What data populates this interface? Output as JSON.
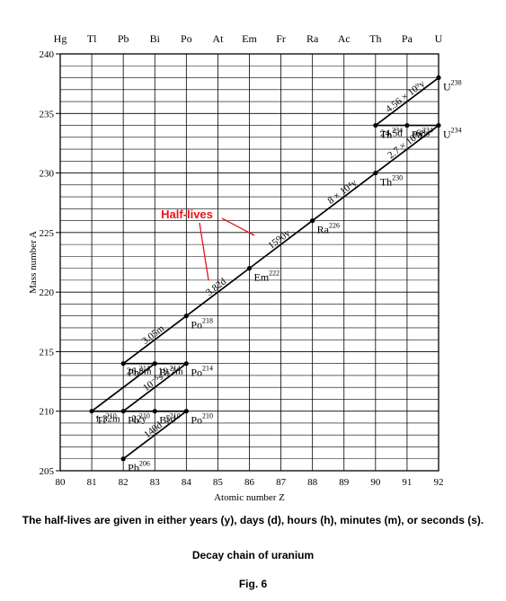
{
  "chart_data": {
    "type": "scatter",
    "xlabel": "Atomic number Z",
    "ylabel": "Mass number A",
    "xlim": [
      80,
      92
    ],
    "ylim": [
      205,
      240
    ],
    "grid": true,
    "top_labels": [
      "Hg",
      "Tl",
      "Pb",
      "Bi",
      "Po",
      "At",
      "Em",
      "Fr",
      "Ra",
      "Ac",
      "Th",
      "Pa",
      "U"
    ],
    "x_ticks": [
      "80",
      "81",
      "82",
      "83",
      "84",
      "85",
      "86",
      "87",
      "88",
      "89",
      "90",
      "91",
      "92"
    ],
    "y_ticks": [
      "205",
      "210",
      "215",
      "220",
      "225",
      "230",
      "235",
      "240"
    ],
    "nuclides": [
      {
        "symbol": "U",
        "mass": "238",
        "z": 92,
        "a": 238
      },
      {
        "symbol": "Th",
        "mass": "234",
        "z": 90,
        "a": 234
      },
      {
        "symbol": "Pa",
        "mass": "234",
        "z": 91,
        "a": 234
      },
      {
        "symbol": "U",
        "mass": "234",
        "z": 92,
        "a": 234
      },
      {
        "symbol": "Th",
        "mass": "230",
        "z": 90,
        "a": 230
      },
      {
        "symbol": "Ra",
        "mass": "226",
        "z": 88,
        "a": 226
      },
      {
        "symbol": "Em",
        "mass": "222",
        "z": 86,
        "a": 222
      },
      {
        "symbol": "Po",
        "mass": "218",
        "z": 84,
        "a": 218
      },
      {
        "symbol": "Pb",
        "mass": "214",
        "z": 82,
        "a": 214
      },
      {
        "symbol": "Bi",
        "mass": "214",
        "z": 83,
        "a": 214
      },
      {
        "symbol": "Po",
        "mass": "214",
        "z": 84,
        "a": 214
      },
      {
        "symbol": "Tl",
        "mass": "210",
        "z": 81,
        "a": 210
      },
      {
        "symbol": "Pb",
        "mass": "210",
        "z": 82,
        "a": 210
      },
      {
        "symbol": "Bi",
        "mass": "210",
        "z": 83,
        "a": 210
      },
      {
        "symbol": "Po",
        "mass": "210",
        "z": 84,
        "a": 210
      },
      {
        "symbol": "Pb",
        "mass": "206",
        "z": 82,
        "a": 206
      }
    ],
    "decays": [
      {
        "from": [
          92,
          238
        ],
        "to": [
          90,
          234
        ],
        "half_life": "4.56 × 10⁹y"
      },
      {
        "from": [
          90,
          234
        ],
        "to": [
          91,
          234
        ],
        "half_life": "24.5d"
      },
      {
        "from": [
          91,
          234
        ],
        "to": [
          92,
          234
        ],
        "half_life": "68s"
      },
      {
        "from": [
          92,
          234
        ],
        "to": [
          90,
          230
        ],
        "half_life": "2.7 × 10⁵y"
      },
      {
        "from": [
          90,
          230
        ],
        "to": [
          88,
          226
        ],
        "half_life": "8 × 10⁴y"
      },
      {
        "from": [
          88,
          226
        ],
        "to": [
          86,
          222
        ],
        "half_life": "1590y"
      },
      {
        "from": [
          86,
          222
        ],
        "to": [
          84,
          218
        ],
        "half_life": "3.82d"
      },
      {
        "from": [
          84,
          218
        ],
        "to": [
          82,
          214
        ],
        "half_life": "3.05m"
      },
      {
        "from": [
          82,
          214
        ],
        "to": [
          83,
          214
        ],
        "half_life": "26.8m"
      },
      {
        "from": [
          83,
          214
        ],
        "to": [
          84,
          214
        ],
        "half_life": "19.7m"
      },
      {
        "from": [
          84,
          214
        ],
        "to": [
          82,
          210
        ],
        "half_life": "10⁻⁵s"
      },
      {
        "from": [
          83,
          214
        ],
        "to": [
          81,
          210
        ],
        "half_life": ""
      },
      {
        "from": [
          81,
          210
        ],
        "to": [
          82,
          210
        ],
        "half_life": "1.32m"
      },
      {
        "from": [
          82,
          210
        ],
        "to": [
          83,
          210
        ],
        "half_life": "22y"
      },
      {
        "from": [
          83,
          210
        ],
        "to": [
          84,
          210
        ],
        "half_life": "5d"
      },
      {
        "from": [
          84,
          210
        ],
        "to": [
          82,
          206
        ],
        "half_life": "140d"
      }
    ],
    "annotation": {
      "text": "Half-lives",
      "color": "#e8141b"
    }
  },
  "caption": {
    "note": "The half-lives are given in either years (y), days (d), hours (h), minutes (m), or seconds (s).",
    "title": "Decay chain of uranium",
    "figure": "Fig. 6"
  }
}
